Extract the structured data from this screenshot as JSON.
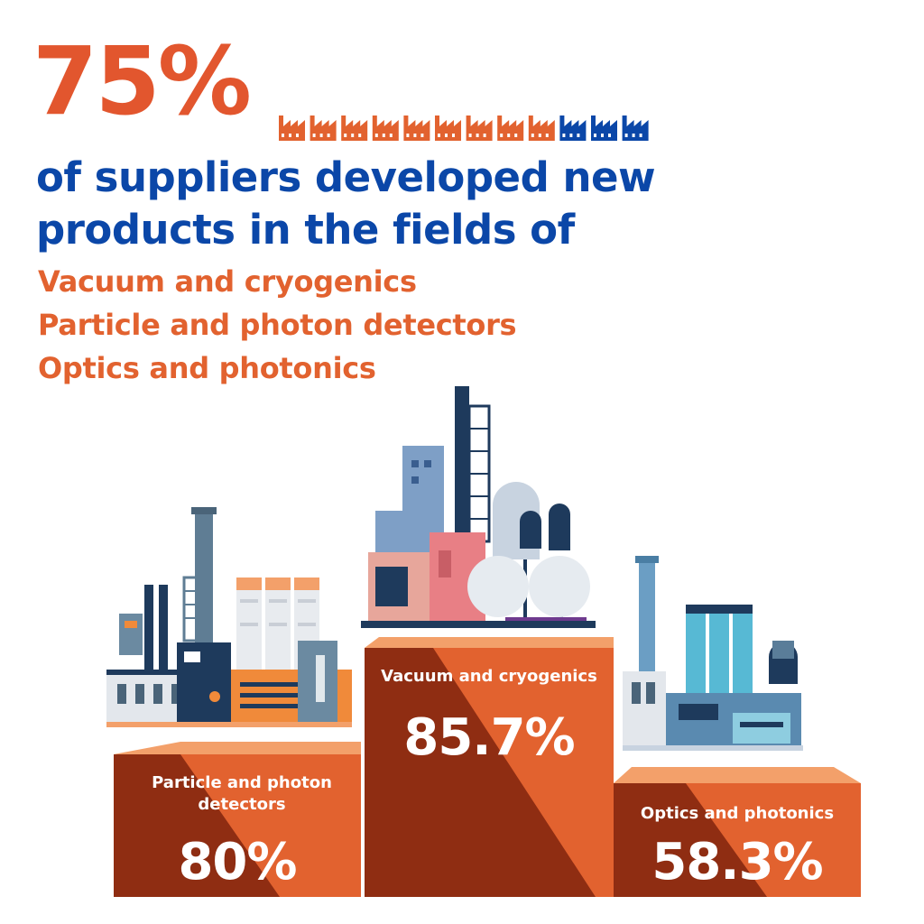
{
  "headline": {
    "percent": "75%",
    "text_line1": "of suppliers developed new",
    "text_line2": "products in the fields of"
  },
  "fields": [
    "Vacuum and cryogenics",
    "Particle and photon detectors",
    "Optics and photonics"
  ],
  "factory_icons": {
    "total": 12,
    "highlighted": 9,
    "highlight_color": "#e2622f",
    "rest_color": "#0b47a8"
  },
  "podium": {
    "left": {
      "label": "Particle and photon detectors",
      "value": "80%"
    },
    "center": {
      "label": "Vacuum and cryogenics",
      "value": "85.7%"
    },
    "right": {
      "label": "Optics and photonics",
      "value": "58.3%"
    }
  },
  "colors": {
    "orange": "#e2622f",
    "dark_orange": "#8f2d12",
    "blue": "#0b47a8",
    "peach": "#f3a06a"
  }
}
